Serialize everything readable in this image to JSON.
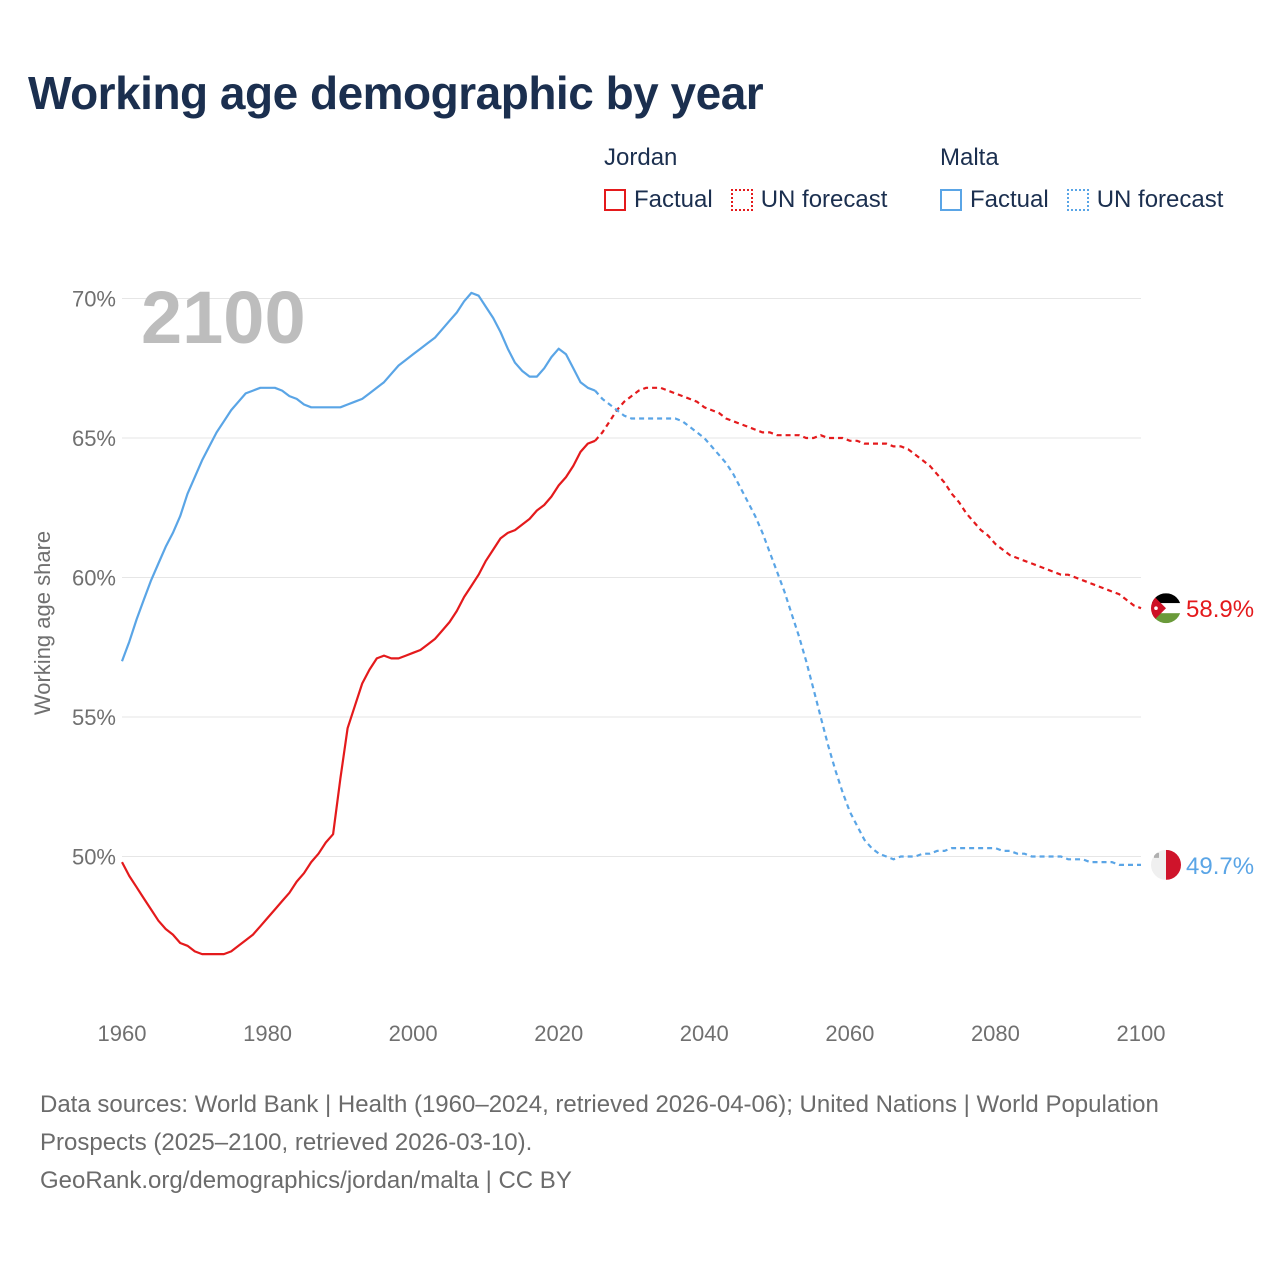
{
  "colors": {
    "title": "#1b2f4f",
    "jordan": "#e41a1c",
    "malta": "#5aa5e6",
    "grid": "#e6e6e6",
    "axis_text": "#707070",
    "year_watermark": "#bdbdbd"
  },
  "title": "Working age demographic by year",
  "legend": {
    "groups": [
      {
        "name": "Jordan",
        "factual": "Factual",
        "forecast": "UN forecast",
        "color": "#e41a1c"
      },
      {
        "name": "Malta",
        "factual": "Factual",
        "forecast": "UN forecast",
        "color": "#5aa5e6"
      }
    ]
  },
  "chart_data": {
    "type": "line",
    "title": "Working age demographic by year",
    "ylabel": "Working age share",
    "xlabel": "",
    "xlim": [
      1960,
      2100
    ],
    "ylim": [
      45,
      70.5
    ],
    "x_ticks": [
      1960,
      1980,
      2000,
      2020,
      2040,
      2060,
      2080,
      2100
    ],
    "y_ticks": [
      50,
      55,
      60,
      65,
      70
    ],
    "y_tick_labels": [
      "50%",
      "55%",
      "60%",
      "65%",
      "70%"
    ],
    "x_tick_labels": [
      "1960",
      "1980",
      "2000",
      "2020",
      "2040",
      "2060",
      "2080",
      "2100"
    ],
    "year_label": "2100",
    "factual_end": 2024,
    "series": [
      {
        "name": "Jordan",
        "color": "#e41a1c",
        "end_label": "58.9%",
        "flag_icon": "jordan-flag-icon",
        "points": [
          [
            1960,
            49.8
          ],
          [
            1961,
            49.3
          ],
          [
            1962,
            48.9
          ],
          [
            1963,
            48.5
          ],
          [
            1964,
            48.1
          ],
          [
            1965,
            47.7
          ],
          [
            1966,
            47.4
          ],
          [
            1967,
            47.2
          ],
          [
            1968,
            46.9
          ],
          [
            1969,
            46.8
          ],
          [
            1970,
            46.6
          ],
          [
            1971,
            46.5
          ],
          [
            1972,
            46.5
          ],
          [
            1973,
            46.5
          ],
          [
            1974,
            46.5
          ],
          [
            1975,
            46.6
          ],
          [
            1976,
            46.8
          ],
          [
            1977,
            47.0
          ],
          [
            1978,
            47.2
          ],
          [
            1979,
            47.5
          ],
          [
            1980,
            47.8
          ],
          [
            1981,
            48.1
          ],
          [
            1982,
            48.4
          ],
          [
            1983,
            48.7
          ],
          [
            1984,
            49.1
          ],
          [
            1985,
            49.4
          ],
          [
            1986,
            49.8
          ],
          [
            1987,
            50.1
          ],
          [
            1988,
            50.5
          ],
          [
            1989,
            50.8
          ],
          [
            1990,
            52.8
          ],
          [
            1991,
            54.6
          ],
          [
            1992,
            55.4
          ],
          [
            1993,
            56.2
          ],
          [
            1994,
            56.7
          ],
          [
            1995,
            57.1
          ],
          [
            1996,
            57.2
          ],
          [
            1997,
            57.1
          ],
          [
            1998,
            57.1
          ],
          [
            1999,
            57.2
          ],
          [
            2000,
            57.3
          ],
          [
            2001,
            57.4
          ],
          [
            2002,
            57.6
          ],
          [
            2003,
            57.8
          ],
          [
            2004,
            58.1
          ],
          [
            2005,
            58.4
          ],
          [
            2006,
            58.8
          ],
          [
            2007,
            59.3
          ],
          [
            2008,
            59.7
          ],
          [
            2009,
            60.1
          ],
          [
            2010,
            60.6
          ],
          [
            2011,
            61.0
          ],
          [
            2012,
            61.4
          ],
          [
            2013,
            61.6
          ],
          [
            2014,
            61.7
          ],
          [
            2015,
            61.9
          ],
          [
            2016,
            62.1
          ],
          [
            2017,
            62.4
          ],
          [
            2018,
            62.6
          ],
          [
            2019,
            62.9
          ],
          [
            2020,
            63.3
          ],
          [
            2021,
            63.6
          ],
          [
            2022,
            64.0
          ],
          [
            2023,
            64.5
          ],
          [
            2024,
            64.8
          ],
          [
            2025,
            64.9
          ],
          [
            2026,
            65.2
          ],
          [
            2027,
            65.6
          ],
          [
            2028,
            66.0
          ],
          [
            2029,
            66.3
          ],
          [
            2030,
            66.5
          ],
          [
            2031,
            66.7
          ],
          [
            2032,
            66.8
          ],
          [
            2033,
            66.8
          ],
          [
            2034,
            66.8
          ],
          [
            2035,
            66.7
          ],
          [
            2036,
            66.6
          ],
          [
            2037,
            66.5
          ],
          [
            2038,
            66.4
          ],
          [
            2039,
            66.3
          ],
          [
            2040,
            66.1
          ],
          [
            2041,
            66.0
          ],
          [
            2042,
            65.9
          ],
          [
            2043,
            65.7
          ],
          [
            2044,
            65.6
          ],
          [
            2045,
            65.5
          ],
          [
            2046,
            65.4
          ],
          [
            2047,
            65.3
          ],
          [
            2048,
            65.2
          ],
          [
            2049,
            65.2
          ],
          [
            2050,
            65.1
          ],
          [
            2051,
            65.1
          ],
          [
            2052,
            65.1
          ],
          [
            2053,
            65.1
          ],
          [
            2054,
            65.0
          ],
          [
            2055,
            65.0
          ],
          [
            2056,
            65.1
          ],
          [
            2057,
            65.0
          ],
          [
            2058,
            65.0
          ],
          [
            2059,
            65.0
          ],
          [
            2060,
            64.9
          ],
          [
            2061,
            64.9
          ],
          [
            2062,
            64.8
          ],
          [
            2063,
            64.8
          ],
          [
            2064,
            64.8
          ],
          [
            2065,
            64.8
          ],
          [
            2066,
            64.7
          ],
          [
            2067,
            64.7
          ],
          [
            2068,
            64.6
          ],
          [
            2069,
            64.4
          ],
          [
            2070,
            64.2
          ],
          [
            2071,
            64.0
          ],
          [
            2072,
            63.7
          ],
          [
            2073,
            63.4
          ],
          [
            2074,
            63.0
          ],
          [
            2075,
            62.7
          ],
          [
            2076,
            62.3
          ],
          [
            2077,
            62.0
          ],
          [
            2078,
            61.7
          ],
          [
            2079,
            61.5
          ],
          [
            2080,
            61.2
          ],
          [
            2081,
            61.0
          ],
          [
            2082,
            60.8
          ],
          [
            2083,
            60.7
          ],
          [
            2084,
            60.6
          ],
          [
            2085,
            60.5
          ],
          [
            2086,
            60.4
          ],
          [
            2087,
            60.3
          ],
          [
            2088,
            60.2
          ],
          [
            2089,
            60.1
          ],
          [
            2090,
            60.1
          ],
          [
            2091,
            60.0
          ],
          [
            2092,
            59.9
          ],
          [
            2093,
            59.8
          ],
          [
            2094,
            59.7
          ],
          [
            2095,
            59.6
          ],
          [
            2096,
            59.5
          ],
          [
            2097,
            59.4
          ],
          [
            2098,
            59.2
          ],
          [
            2099,
            59.0
          ],
          [
            2100,
            58.9
          ]
        ]
      },
      {
        "name": "Malta",
        "color": "#5aa5e6",
        "end_label": "49.7%",
        "flag_icon": "malta-flag-icon",
        "points": [
          [
            1960,
            57.0
          ],
          [
            1961,
            57.7
          ],
          [
            1962,
            58.5
          ],
          [
            1963,
            59.2
          ],
          [
            1964,
            59.9
          ],
          [
            1965,
            60.5
          ],
          [
            1966,
            61.1
          ],
          [
            1967,
            61.6
          ],
          [
            1968,
            62.2
          ],
          [
            1969,
            63.0
          ],
          [
            1970,
            63.6
          ],
          [
            1971,
            64.2
          ],
          [
            1972,
            64.7
          ],
          [
            1973,
            65.2
          ],
          [
            1974,
            65.6
          ],
          [
            1975,
            66.0
          ],
          [
            1976,
            66.3
          ],
          [
            1977,
            66.6
          ],
          [
            1978,
            66.7
          ],
          [
            1979,
            66.8
          ],
          [
            1980,
            66.8
          ],
          [
            1981,
            66.8
          ],
          [
            1982,
            66.7
          ],
          [
            1983,
            66.5
          ],
          [
            1984,
            66.4
          ],
          [
            1985,
            66.2
          ],
          [
            1986,
            66.1
          ],
          [
            1987,
            66.1
          ],
          [
            1988,
            66.1
          ],
          [
            1989,
            66.1
          ],
          [
            1990,
            66.1
          ],
          [
            1991,
            66.2
          ],
          [
            1992,
            66.3
          ],
          [
            1993,
            66.4
          ],
          [
            1994,
            66.6
          ],
          [
            1995,
            66.8
          ],
          [
            1996,
            67.0
          ],
          [
            1997,
            67.3
          ],
          [
            1998,
            67.6
          ],
          [
            1999,
            67.8
          ],
          [
            2000,
            68.0
          ],
          [
            2001,
            68.2
          ],
          [
            2002,
            68.4
          ],
          [
            2003,
            68.6
          ],
          [
            2004,
            68.9
          ],
          [
            2005,
            69.2
          ],
          [
            2006,
            69.5
          ],
          [
            2007,
            69.9
          ],
          [
            2008,
            70.2
          ],
          [
            2009,
            70.1
          ],
          [
            2010,
            69.7
          ],
          [
            2011,
            69.3
          ],
          [
            2012,
            68.8
          ],
          [
            2013,
            68.2
          ],
          [
            2014,
            67.7
          ],
          [
            2015,
            67.4
          ],
          [
            2016,
            67.2
          ],
          [
            2017,
            67.2
          ],
          [
            2018,
            67.5
          ],
          [
            2019,
            67.9
          ],
          [
            2020,
            68.2
          ],
          [
            2021,
            68.0
          ],
          [
            2022,
            67.5
          ],
          [
            2023,
            67.0
          ],
          [
            2024,
            66.8
          ],
          [
            2025,
            66.7
          ],
          [
            2026,
            66.4
          ],
          [
            2027,
            66.2
          ],
          [
            2028,
            66.0
          ],
          [
            2029,
            65.8
          ],
          [
            2030,
            65.7
          ],
          [
            2031,
            65.7
          ],
          [
            2032,
            65.7
          ],
          [
            2033,
            65.7
          ],
          [
            2034,
            65.7
          ],
          [
            2035,
            65.7
          ],
          [
            2036,
            65.7
          ],
          [
            2037,
            65.6
          ],
          [
            2038,
            65.4
          ],
          [
            2039,
            65.2
          ],
          [
            2040,
            65.0
          ],
          [
            2041,
            64.7
          ],
          [
            2042,
            64.4
          ],
          [
            2043,
            64.1
          ],
          [
            2044,
            63.7
          ],
          [
            2045,
            63.2
          ],
          [
            2046,
            62.7
          ],
          [
            2047,
            62.2
          ],
          [
            2048,
            61.6
          ],
          [
            2049,
            60.9
          ],
          [
            2050,
            60.2
          ],
          [
            2051,
            59.5
          ],
          [
            2052,
            58.7
          ],
          [
            2053,
            57.9
          ],
          [
            2054,
            57.0
          ],
          [
            2055,
            56.0
          ],
          [
            2056,
            55.0
          ],
          [
            2057,
            54.0
          ],
          [
            2058,
            53.1
          ],
          [
            2059,
            52.3
          ],
          [
            2060,
            51.6
          ],
          [
            2061,
            51.1
          ],
          [
            2062,
            50.6
          ],
          [
            2063,
            50.3
          ],
          [
            2064,
            50.1
          ],
          [
            2065,
            50.0
          ],
          [
            2066,
            49.9
          ],
          [
            2067,
            50.0
          ],
          [
            2068,
            50.0
          ],
          [
            2069,
            50.0
          ],
          [
            2070,
            50.1
          ],
          [
            2071,
            50.1
          ],
          [
            2072,
            50.2
          ],
          [
            2073,
            50.2
          ],
          [
            2074,
            50.3
          ],
          [
            2075,
            50.3
          ],
          [
            2076,
            50.3
          ],
          [
            2077,
            50.3
          ],
          [
            2078,
            50.3
          ],
          [
            2079,
            50.3
          ],
          [
            2080,
            50.3
          ],
          [
            2081,
            50.2
          ],
          [
            2082,
            50.2
          ],
          [
            2083,
            50.1
          ],
          [
            2084,
            50.1
          ],
          [
            2085,
            50.0
          ],
          [
            2086,
            50.0
          ],
          [
            2087,
            50.0
          ],
          [
            2088,
            50.0
          ],
          [
            2089,
            50.0
          ],
          [
            2090,
            49.9
          ],
          [
            2091,
            49.9
          ],
          [
            2092,
            49.9
          ],
          [
            2093,
            49.8
          ],
          [
            2094,
            49.8
          ],
          [
            2095,
            49.8
          ],
          [
            2096,
            49.8
          ],
          [
            2097,
            49.7
          ],
          [
            2098,
            49.7
          ],
          [
            2099,
            49.7
          ],
          [
            2100,
            49.7
          ]
        ]
      }
    ]
  },
  "footer": {
    "line1": "Data sources: World Bank | Health (1960–2024, retrieved 2026-04-06); United Nations | World Population Prospects (2025–2100, retrieved 2026-03-10).",
    "line2": "GeoRank.org/demographics/jordan/malta | CC BY"
  }
}
